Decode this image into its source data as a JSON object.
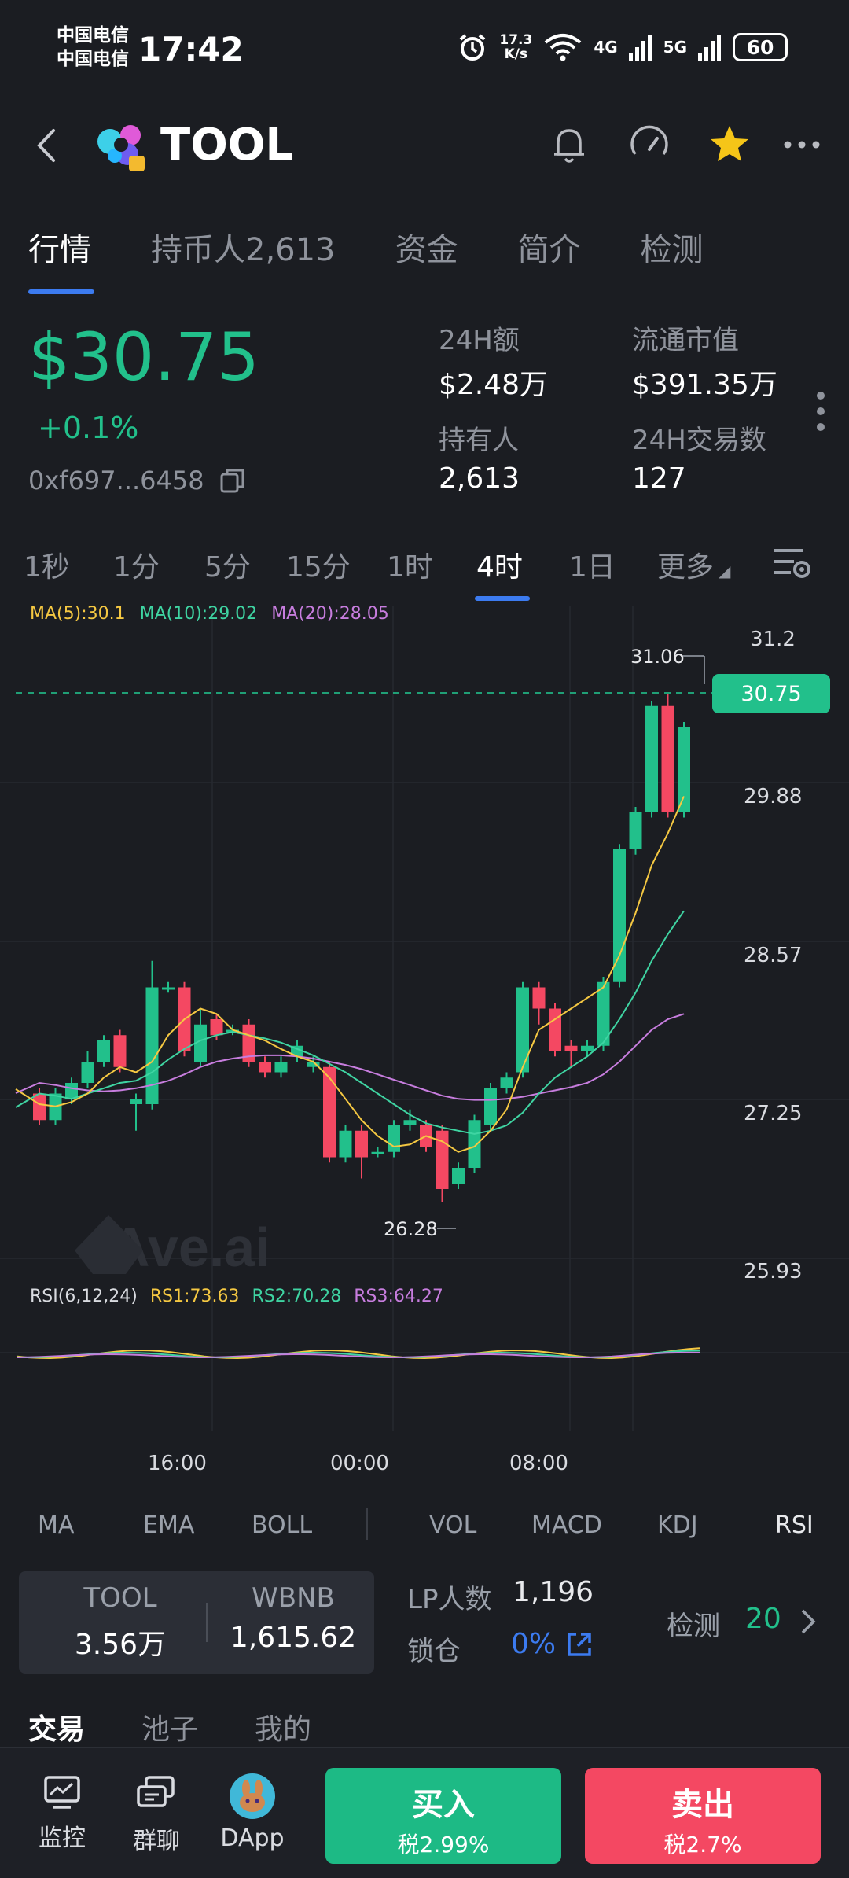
{
  "status_bar": {
    "carrier1": "中国电信",
    "carrier2": "中国电信",
    "time": "17:42",
    "net_speed_value": "17.3",
    "net_speed_unit": "K/s",
    "signal1": "4G",
    "signal2": "5G",
    "battery": "60"
  },
  "header": {
    "token_name": "TOOL"
  },
  "tabs": [
    {
      "label": "行情"
    },
    {
      "label": "持币人2,613"
    },
    {
      "label": "资金"
    },
    {
      "label": "简介"
    },
    {
      "label": "检测"
    }
  ],
  "price": {
    "value": "$30.75",
    "change": "+0.1%",
    "address": "0xf697...6458"
  },
  "stats": {
    "vol24h_label": "24H额",
    "vol24h_value": "$2.48万",
    "mcap_label": "流通市值",
    "mcap_value": "$391.35万",
    "holders_label": "持有人",
    "holders_value": "2,613",
    "tx24h_label": "24H交易数",
    "tx24h_value": "127"
  },
  "intervals": [
    "1秒",
    "1分",
    "5分",
    "15分",
    "1时",
    "4时",
    "1日",
    "更多"
  ],
  "active_interval": "4时",
  "legend": {
    "ma5": "MA(5):30.1",
    "ma10": "MA(10):29.02",
    "ma20": "MA(20):28.05",
    "rsi": "RSI(6,12,24)",
    "rs1": "RS1:73.63",
    "rs2": "RS2:70.28",
    "rs3": "RS3:64.27"
  },
  "colors": {
    "up": "#22c08b",
    "down": "#f44862",
    "ma5": "#f5c842",
    "ma10": "#3fd4a2",
    "ma20": "#c77dde",
    "accent": "#3c7bf0",
    "annotation": "#f08a2c"
  },
  "watermark": "Ave.ai",
  "chart_data": {
    "type": "candlestick",
    "y_axis_labels": [
      "31.2",
      "29.88",
      "28.57",
      "27.25",
      "25.93"
    ],
    "current_price_tag": "30.75",
    "high_marker": "31.06",
    "low_marker": "26.28",
    "x_axis_labels": [
      "16:00",
      "00:00",
      "08:00"
    ],
    "ylim": [
      25.6,
      31.6
    ],
    "candles": [
      {
        "o": 27.3,
        "c": 27.05,
        "h": 27.35,
        "l": 27.0
      },
      {
        "o": 27.05,
        "c": 27.3,
        "h": 27.35,
        "l": 27.0
      },
      {
        "o": 27.25,
        "c": 27.4,
        "h": 27.45,
        "l": 27.2
      },
      {
        "o": 27.4,
        "c": 27.6,
        "h": 27.7,
        "l": 27.35
      },
      {
        "o": 27.6,
        "c": 27.8,
        "h": 27.85,
        "l": 27.55
      },
      {
        "o": 27.85,
        "c": 27.55,
        "h": 27.9,
        "l": 27.5
      },
      {
        "o": 27.2,
        "c": 27.25,
        "h": 27.3,
        "l": 26.95
      },
      {
        "o": 27.2,
        "c": 28.3,
        "h": 28.55,
        "l": 27.15
      },
      {
        "o": 28.3,
        "c": 28.3,
        "h": 28.35,
        "l": 28.25
      },
      {
        "o": 28.3,
        "c": 27.7,
        "h": 28.35,
        "l": 27.65
      },
      {
        "o": 27.6,
        "c": 27.95,
        "h": 28.1,
        "l": 27.55
      },
      {
        "o": 28.0,
        "c": 27.85,
        "h": 28.05,
        "l": 27.8
      },
      {
        "o": 27.9,
        "c": 27.9,
        "h": 27.95,
        "l": 27.85
      },
      {
        "o": 27.95,
        "c": 27.6,
        "h": 28.0,
        "l": 27.55
      },
      {
        "o": 27.6,
        "c": 27.5,
        "h": 27.65,
        "l": 27.45
      },
      {
        "o": 27.5,
        "c": 27.6,
        "h": 27.65,
        "l": 27.45
      },
      {
        "o": 27.65,
        "c": 27.75,
        "h": 27.8,
        "l": 27.6
      },
      {
        "o": 27.55,
        "c": 27.6,
        "h": 27.65,
        "l": 27.5
      },
      {
        "o": 27.55,
        "c": 26.7,
        "h": 27.6,
        "l": 26.65
      },
      {
        "o": 26.7,
        "c": 26.95,
        "h": 27.0,
        "l": 26.65
      },
      {
        "o": 26.95,
        "c": 26.7,
        "h": 27.0,
        "l": 26.5
      },
      {
        "o": 26.75,
        "c": 26.75,
        "h": 26.8,
        "l": 26.7
      },
      {
        "o": 26.75,
        "c": 27.0,
        "h": 27.05,
        "l": 26.7
      },
      {
        "o": 27.0,
        "c": 27.05,
        "h": 27.15,
        "l": 26.95
      },
      {
        "o": 27.0,
        "c": 26.8,
        "h": 27.05,
        "l": 26.75
      },
      {
        "o": 26.95,
        "c": 26.4,
        "h": 27.0,
        "l": 26.28
      },
      {
        "o": 26.45,
        "c": 26.6,
        "h": 26.65,
        "l": 26.4
      },
      {
        "o": 26.6,
        "c": 27.05,
        "h": 27.1,
        "l": 26.55
      },
      {
        "o": 27.0,
        "c": 27.35,
        "h": 27.4,
        "l": 26.95
      },
      {
        "o": 27.35,
        "c": 27.45,
        "h": 27.5,
        "l": 27.3
      },
      {
        "o": 27.5,
        "c": 28.3,
        "h": 28.35,
        "l": 27.45
      },
      {
        "o": 28.3,
        "c": 28.1,
        "h": 28.35,
        "l": 27.95
      },
      {
        "o": 28.1,
        "c": 27.7,
        "h": 28.15,
        "l": 27.65
      },
      {
        "o": 27.75,
        "c": 27.7,
        "h": 27.8,
        "l": 27.55
      },
      {
        "o": 27.7,
        "c": 27.75,
        "h": 27.8,
        "l": 27.65
      },
      {
        "o": 27.75,
        "c": 28.35,
        "h": 28.4,
        "l": 27.7
      },
      {
        "o": 28.35,
        "c": 29.6,
        "h": 29.65,
        "l": 28.3
      },
      {
        "o": 29.6,
        "c": 29.95,
        "h": 30.0,
        "l": 29.55
      },
      {
        "o": 29.95,
        "c": 30.95,
        "h": 31.0,
        "l": 29.9
      },
      {
        "o": 30.95,
        "c": 29.95,
        "h": 31.06,
        "l": 29.9
      },
      {
        "o": 29.95,
        "c": 30.75,
        "h": 30.8,
        "l": 29.9
      }
    ],
    "ma5": [
      27.2,
      27.18,
      27.22,
      27.3,
      27.45,
      27.55,
      27.5,
      27.6,
      27.85,
      28.0,
      28.1,
      28.05,
      27.9,
      27.85,
      27.8,
      27.72,
      27.65,
      27.6,
      27.45,
      27.25,
      27.05,
      26.9,
      26.8,
      26.82,
      26.9,
      26.85,
      26.75,
      26.8,
      26.95,
      27.15,
      27.55,
      27.9,
      28.0,
      28.1,
      28.2,
      28.3,
      28.6,
      29.0,
      29.45,
      29.75,
      30.1
    ],
    "ma10": [
      27.3,
      27.28,
      27.25,
      27.3,
      27.35,
      27.4,
      27.42,
      27.5,
      27.62,
      27.72,
      27.8,
      27.85,
      27.88,
      27.85,
      27.82,
      27.78,
      27.72,
      27.66,
      27.58,
      27.5,
      27.4,
      27.3,
      27.2,
      27.1,
      27.02,
      26.98,
      26.95,
      26.92,
      26.95,
      27.0,
      27.12,
      27.3,
      27.45,
      27.55,
      27.65,
      27.78,
      28.0,
      28.25,
      28.55,
      28.8,
      29.02
    ],
    "ma20": [
      27.4,
      27.38,
      27.35,
      27.33,
      27.32,
      27.33,
      27.35,
      27.38,
      27.42,
      27.48,
      27.55,
      27.6,
      27.63,
      27.65,
      27.66,
      27.66,
      27.65,
      27.63,
      27.6,
      27.57,
      27.53,
      27.48,
      27.43,
      27.38,
      27.33,
      27.28,
      27.25,
      27.24,
      27.24,
      27.25,
      27.27,
      27.3,
      27.33,
      27.36,
      27.4,
      27.48,
      27.6,
      27.75,
      27.9,
      28.0,
      28.05
    ]
  },
  "indicators": [
    "MA",
    "EMA",
    "BOLL",
    "VOL",
    "MACD",
    "KDJ",
    "RSI"
  ],
  "pool": {
    "token_label": "TOOL",
    "token_value": "3.56万",
    "base_label": "WBNB",
    "base_value": "1,615.62"
  },
  "lp": {
    "count_label": "LP人数",
    "count_value": "1,196",
    "lock_label": "锁仓",
    "lock_value": "0%",
    "check_label": "检测",
    "check_value": "20"
  },
  "bottom_tabs": [
    "交易",
    "池子",
    "我的"
  ],
  "nav": {
    "monitor": "监控",
    "group_chat": "群聊",
    "dapp": "DApp",
    "buy": "买入",
    "buy_tax": "税2.99%",
    "sell": "卖出",
    "sell_tax": "税2.7%"
  }
}
